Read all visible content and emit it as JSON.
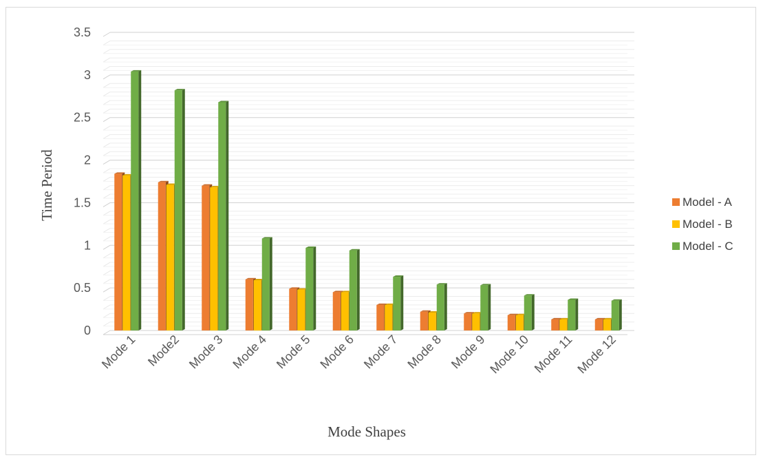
{
  "chart_data": {
    "type": "bar",
    "title": "",
    "xlabel": "Mode Shapes",
    "ylabel": "Time Period",
    "ylim": [
      0,
      3.5
    ],
    "ytick_labels": [
      "0",
      "0.5",
      "1",
      "1.5",
      "2",
      "2.5",
      "3",
      "3.5"
    ],
    "yticks": [
      0,
      0.5,
      1,
      1.5,
      2,
      2.5,
      3,
      3.5
    ],
    "minor_grid_step": 0.1,
    "grid": true,
    "legend_position": "right",
    "categories": [
      "Mode 1",
      "Mode2",
      "Mode 3",
      "Mode 4",
      "Mode 5",
      "Mode 6",
      "Mode 7",
      "Mode 8",
      "Mode 9",
      "Mode 10",
      "Mode 11",
      "Mode 12"
    ],
    "series": [
      {
        "name": "Model - A",
        "color": "#ed7d31",
        "values": [
          1.84,
          1.74,
          1.7,
          0.6,
          0.49,
          0.45,
          0.3,
          0.22,
          0.2,
          0.18,
          0.13,
          0.13
        ]
      },
      {
        "name": "Model - B",
        "color": "#ffc000",
        "values": [
          1.82,
          1.71,
          1.68,
          0.59,
          0.48,
          0.45,
          0.3,
          0.21,
          0.2,
          0.18,
          0.13,
          0.13
        ]
      },
      {
        "name": "Model - C",
        "color": "#70ad47",
        "values": [
          3.04,
          2.82,
          2.68,
          1.08,
          0.97,
          0.94,
          0.63,
          0.54,
          0.53,
          0.41,
          0.36,
          0.35
        ]
      }
    ]
  }
}
